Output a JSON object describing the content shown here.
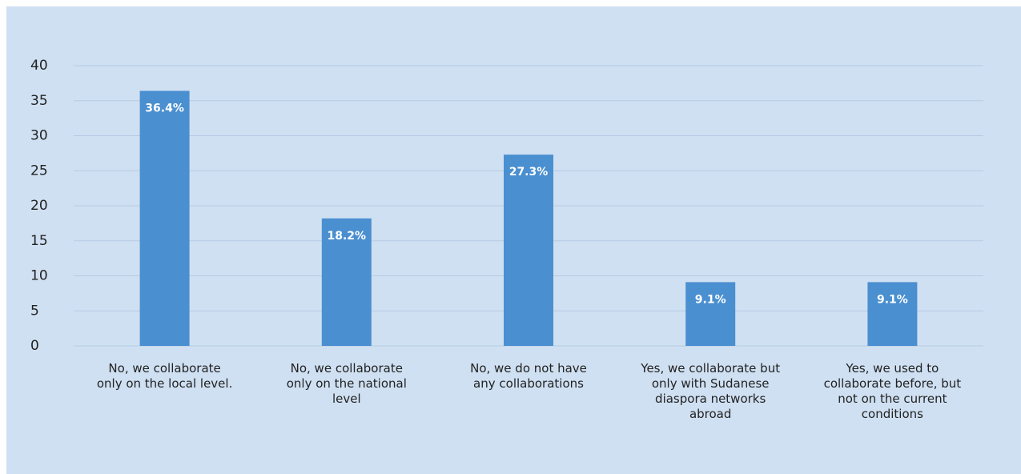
{
  "chart_data": {
    "type": "bar",
    "categories": [
      "No, we collaborate only on the local level.",
      "No, we collaborate only on the national level",
      "No, we do not have any collaborations",
      "Yes, we collaborate but only with Sudanese diaspora networks abroad",
      "Yes, we used to collaborate before, but not on the current conditions"
    ],
    "values": [
      36.4,
      18.2,
      27.3,
      9.1,
      9.1
    ],
    "value_labels": [
      "36.4%",
      "18.2%",
      "27.3%",
      "9.1%",
      "9.1%"
    ],
    "color": "#4a8fd0",
    "ylim": [
      0,
      40
    ],
    "yticks": [
      0,
      5,
      10,
      15,
      20,
      25,
      30,
      35,
      40
    ],
    "grid": true
  }
}
